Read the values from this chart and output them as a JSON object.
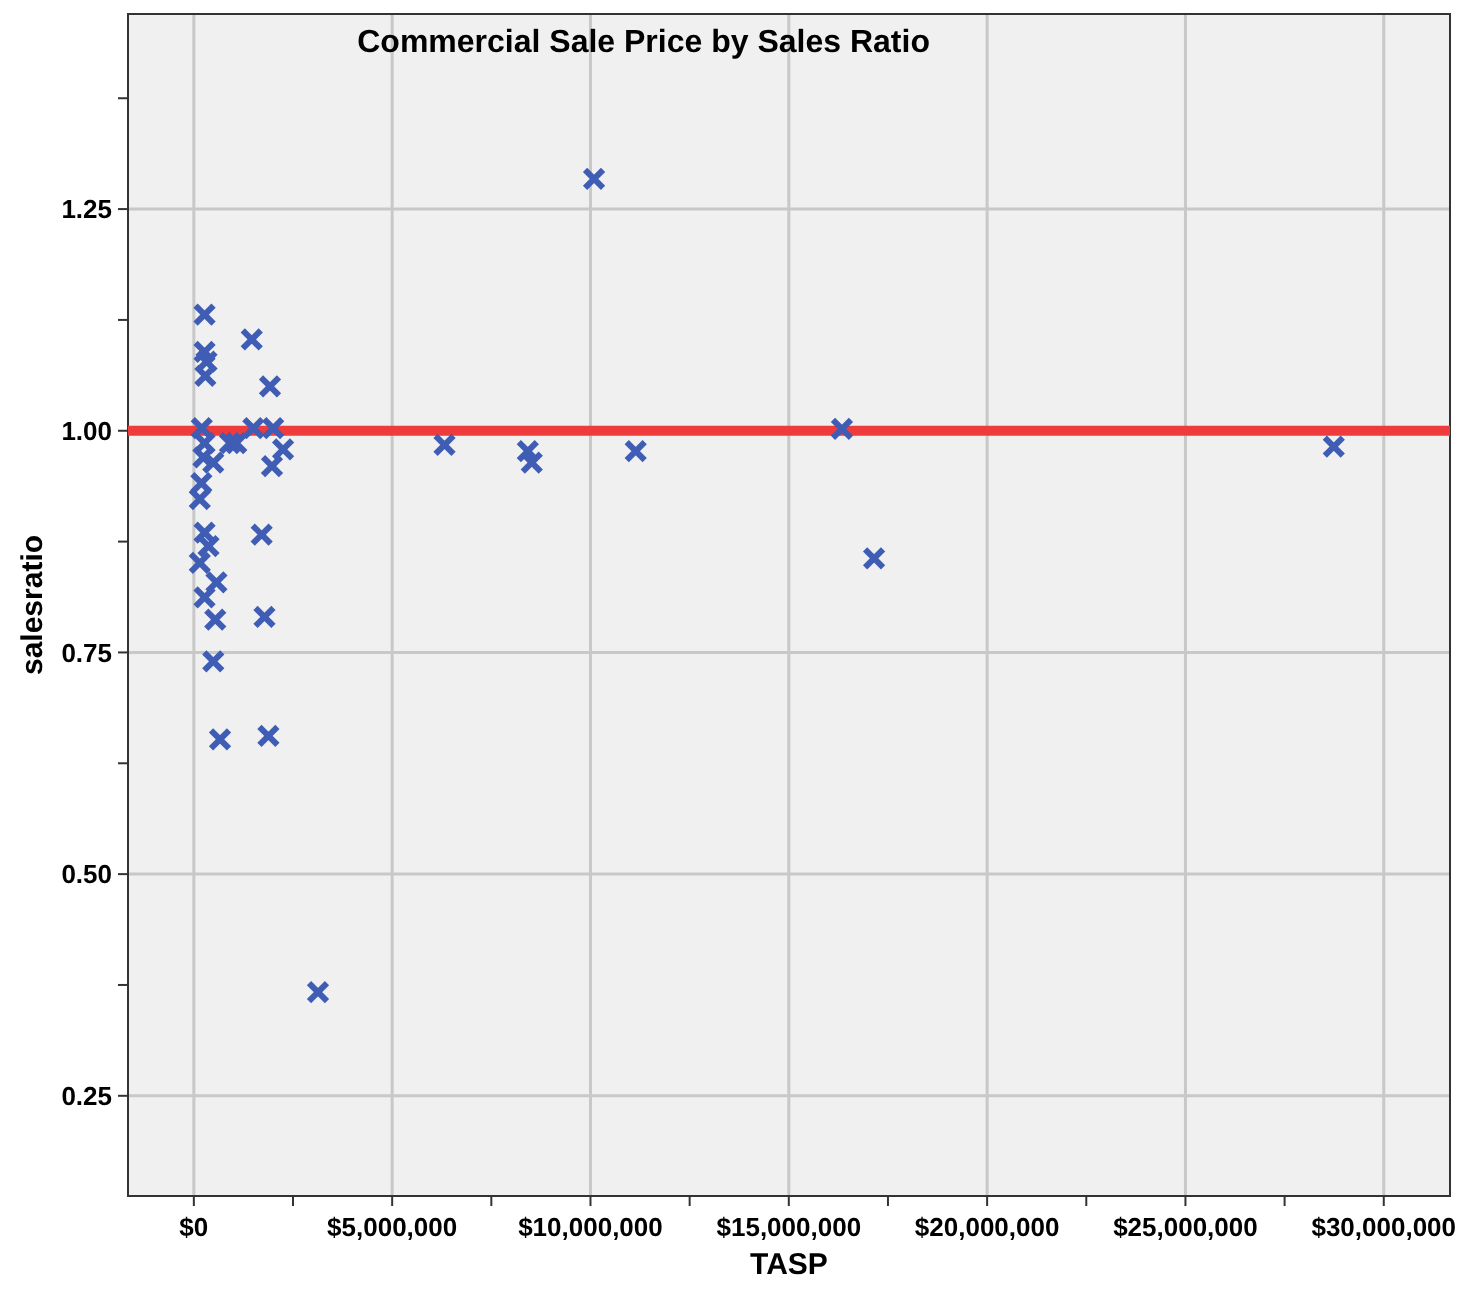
{
  "chart_data": {
    "type": "scatter",
    "title": "Commercial Sale Price by Sales Ratio",
    "xlabel": "TASP",
    "ylabel": "salesratio",
    "xlim": [
      -1660000,
      31670000
    ],
    "ylim": [
      0.137,
      1.47
    ],
    "xticks": [
      {
        "value": 0,
        "label": "$0"
      },
      {
        "value": 2500000,
        "label": null
      },
      {
        "value": 5000000,
        "label": "$5,000,000"
      },
      {
        "value": 7500000,
        "label": null
      },
      {
        "value": 10000000,
        "label": "$10,000,000"
      },
      {
        "value": 12500000,
        "label": null
      },
      {
        "value": 15000000,
        "label": "$15,000,000"
      },
      {
        "value": 17500000,
        "label": null
      },
      {
        "value": 20000000,
        "label": "$20,000,000"
      },
      {
        "value": 22500000,
        "label": null
      },
      {
        "value": 25000000,
        "label": "$25,000,000"
      },
      {
        "value": 27500000,
        "label": null
      },
      {
        "value": 30000000,
        "label": "$30,000,000"
      }
    ],
    "yticks": [
      {
        "value": 0.25,
        "label": "0.25"
      },
      {
        "value": 0.375,
        "label": null
      },
      {
        "value": 0.5,
        "label": "0.50"
      },
      {
        "value": 0.625,
        "label": null
      },
      {
        "value": 0.75,
        "label": "0.75"
      },
      {
        "value": 0.875,
        "label": null
      },
      {
        "value": 1,
        "label": "1.00"
      },
      {
        "value": 1.125,
        "label": null
      },
      {
        "value": 1.25,
        "label": "1.25"
      },
      {
        "value": 1.375,
        "label": null
      }
    ],
    "grid": true,
    "marker": "cross",
    "ref_lines": [
      {
        "axis": "y",
        "value": 1,
        "color": "#ee3b3b"
      }
    ],
    "series": [
      {
        "color": "#3f5db5",
        "x": [
          270000,
          1460000,
          270000,
          320000,
          290000,
          1920000,
          200000,
          1500000,
          2000000,
          270000,
          910000,
          1070000,
          2250000,
          6320000,
          240000,
          490000,
          1970000,
          190000,
          150000,
          270000,
          1710000,
          370000,
          150000,
          570000,
          270000,
          540000,
          1780000,
          490000,
          660000,
          1880000,
          3130000,
          8420000,
          8520000,
          10090000,
          11140000,
          16340000,
          17150000,
          28740000
        ],
        "values": [
          1.131,
          1.103,
          1.089,
          1.078,
          1.062,
          1.05,
          1.003,
          1.003,
          1.003,
          0.986,
          0.986,
          0.986,
          0.979,
          0.984,
          0.97,
          0.964,
          0.96,
          0.941,
          0.923,
          0.885,
          0.883,
          0.87,
          0.851,
          0.829,
          0.812,
          0.787,
          0.79,
          0.74,
          0.652,
          0.656,
          0.367,
          0.977,
          0.964,
          1.284,
          0.977,
          1.002,
          0.856,
          0.982
        ]
      }
    ]
  }
}
